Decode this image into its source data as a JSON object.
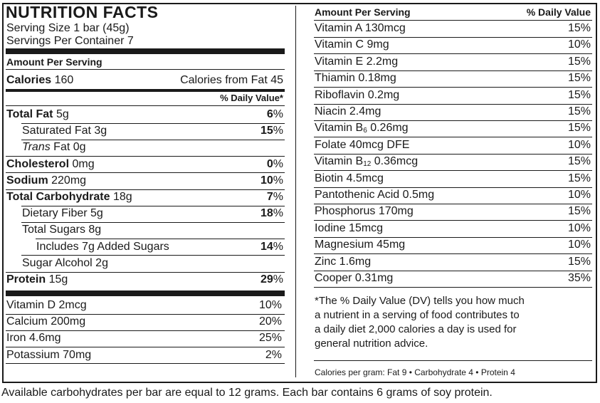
{
  "title": "NUTRITION FACTS",
  "serving_size": "Serving Size 1 bar (45g)",
  "servings_per_container": "Servings Per Container 7",
  "amount_per_serving": "Amount Per Serving",
  "calories_label": "Calories",
  "calories_value": "160",
  "calories_from_fat": "Calories from Fat 45",
  "daily_value_header": "% Daily Value*",
  "left_rows": [
    {
      "label": "Total Fat",
      "value": "5g",
      "pct": "6",
      "unit": "%"
    },
    {
      "label": "Saturated Fat 3g",
      "pct": "15",
      "unit": "%"
    },
    {
      "label_italic": "Trans",
      "label_rest": " Fat 0g"
    },
    {
      "label": "Cholesterol",
      "value": "0mg",
      "pct": "0",
      "unit": "%"
    },
    {
      "label": "Sodium",
      "value": "220mg",
      "pct": "10",
      "unit": "%"
    },
    {
      "label": "Total Carbohydrate",
      "value": "18g",
      "pct": "7",
      "unit": "%"
    },
    {
      "label": "Dietary Fiber 5g",
      "pct": "18",
      "unit": "%"
    },
    {
      "label": "Total Sugars 8g"
    },
    {
      "label": "Includes 7g Added Sugars",
      "pct": "14",
      "unit": "%"
    },
    {
      "label": "Sugar Alcohol 2g"
    },
    {
      "label": "Protein",
      "value": "15g",
      "pct": "29",
      "unit": "%"
    }
  ],
  "left_minerals": [
    {
      "label": "Vitamin D 2mcg",
      "pct": "10%"
    },
    {
      "label": "Calcium 200mg",
      "pct": "20%"
    },
    {
      "label": "Iron 4.6mg",
      "pct": "25%"
    },
    {
      "label": "Potassium 70mg",
      "pct": "2%"
    }
  ],
  "right_header_left": "Amount Per Serving",
  "right_header_right": "% Daily Value",
  "right_rows": [
    {
      "label": "Vitamin A 130mcg",
      "pct": "15%"
    },
    {
      "label": "Vitamin C 9mg",
      "pct": "10%"
    },
    {
      "label": "Vitamin E 2.2mg",
      "pct": "15%"
    },
    {
      "label": "Thiamin 0.18mg",
      "pct": "15%"
    },
    {
      "label": "Riboflavin 0.2mg",
      "pct": "15%"
    },
    {
      "label": "Niacin 2.4mg",
      "pct": "15%"
    },
    {
      "label_pre": "Vitamin B",
      "label_sub": "6",
      "label_post": " 0.26mg",
      "pct": "15%"
    },
    {
      "label": "Folate 40mcg DFE",
      "pct": "10%"
    },
    {
      "label_pre": "Vitamin B",
      "label_sub": "12",
      "label_post": " 0.36mcg",
      "pct": "15%"
    },
    {
      "label": "Biotin 4.5mcg",
      "pct": "15%"
    },
    {
      "label": "Pantothenic Acid 0.5mg",
      "pct": "10%"
    },
    {
      "label": "Phosphorus 170mg",
      "pct": "15%"
    },
    {
      "label": "Iodine 15mcg",
      "pct": "10%"
    },
    {
      "label": "Magnesium 45mg",
      "pct": "10%"
    },
    {
      "label": "Zinc 1.6mg",
      "pct": "15%"
    },
    {
      "label": "Cooper 0.31mg",
      "pct": "35%"
    }
  ],
  "footnote": [
    "*The % Daily Value (DV) tells you how much",
    "a nutrient in a serving of food contributes to",
    "a daily diet 2,000 calories a day is used for",
    "general nutrition advice."
  ],
  "calories_per_gram": "Calories per gram: Fat 9 • Carbohydrate 4 • Protein 4",
  "bottom_text": "Available carbohydrates per bar are equal to 12 grams. Each bar contains 6 grams of soy protein."
}
